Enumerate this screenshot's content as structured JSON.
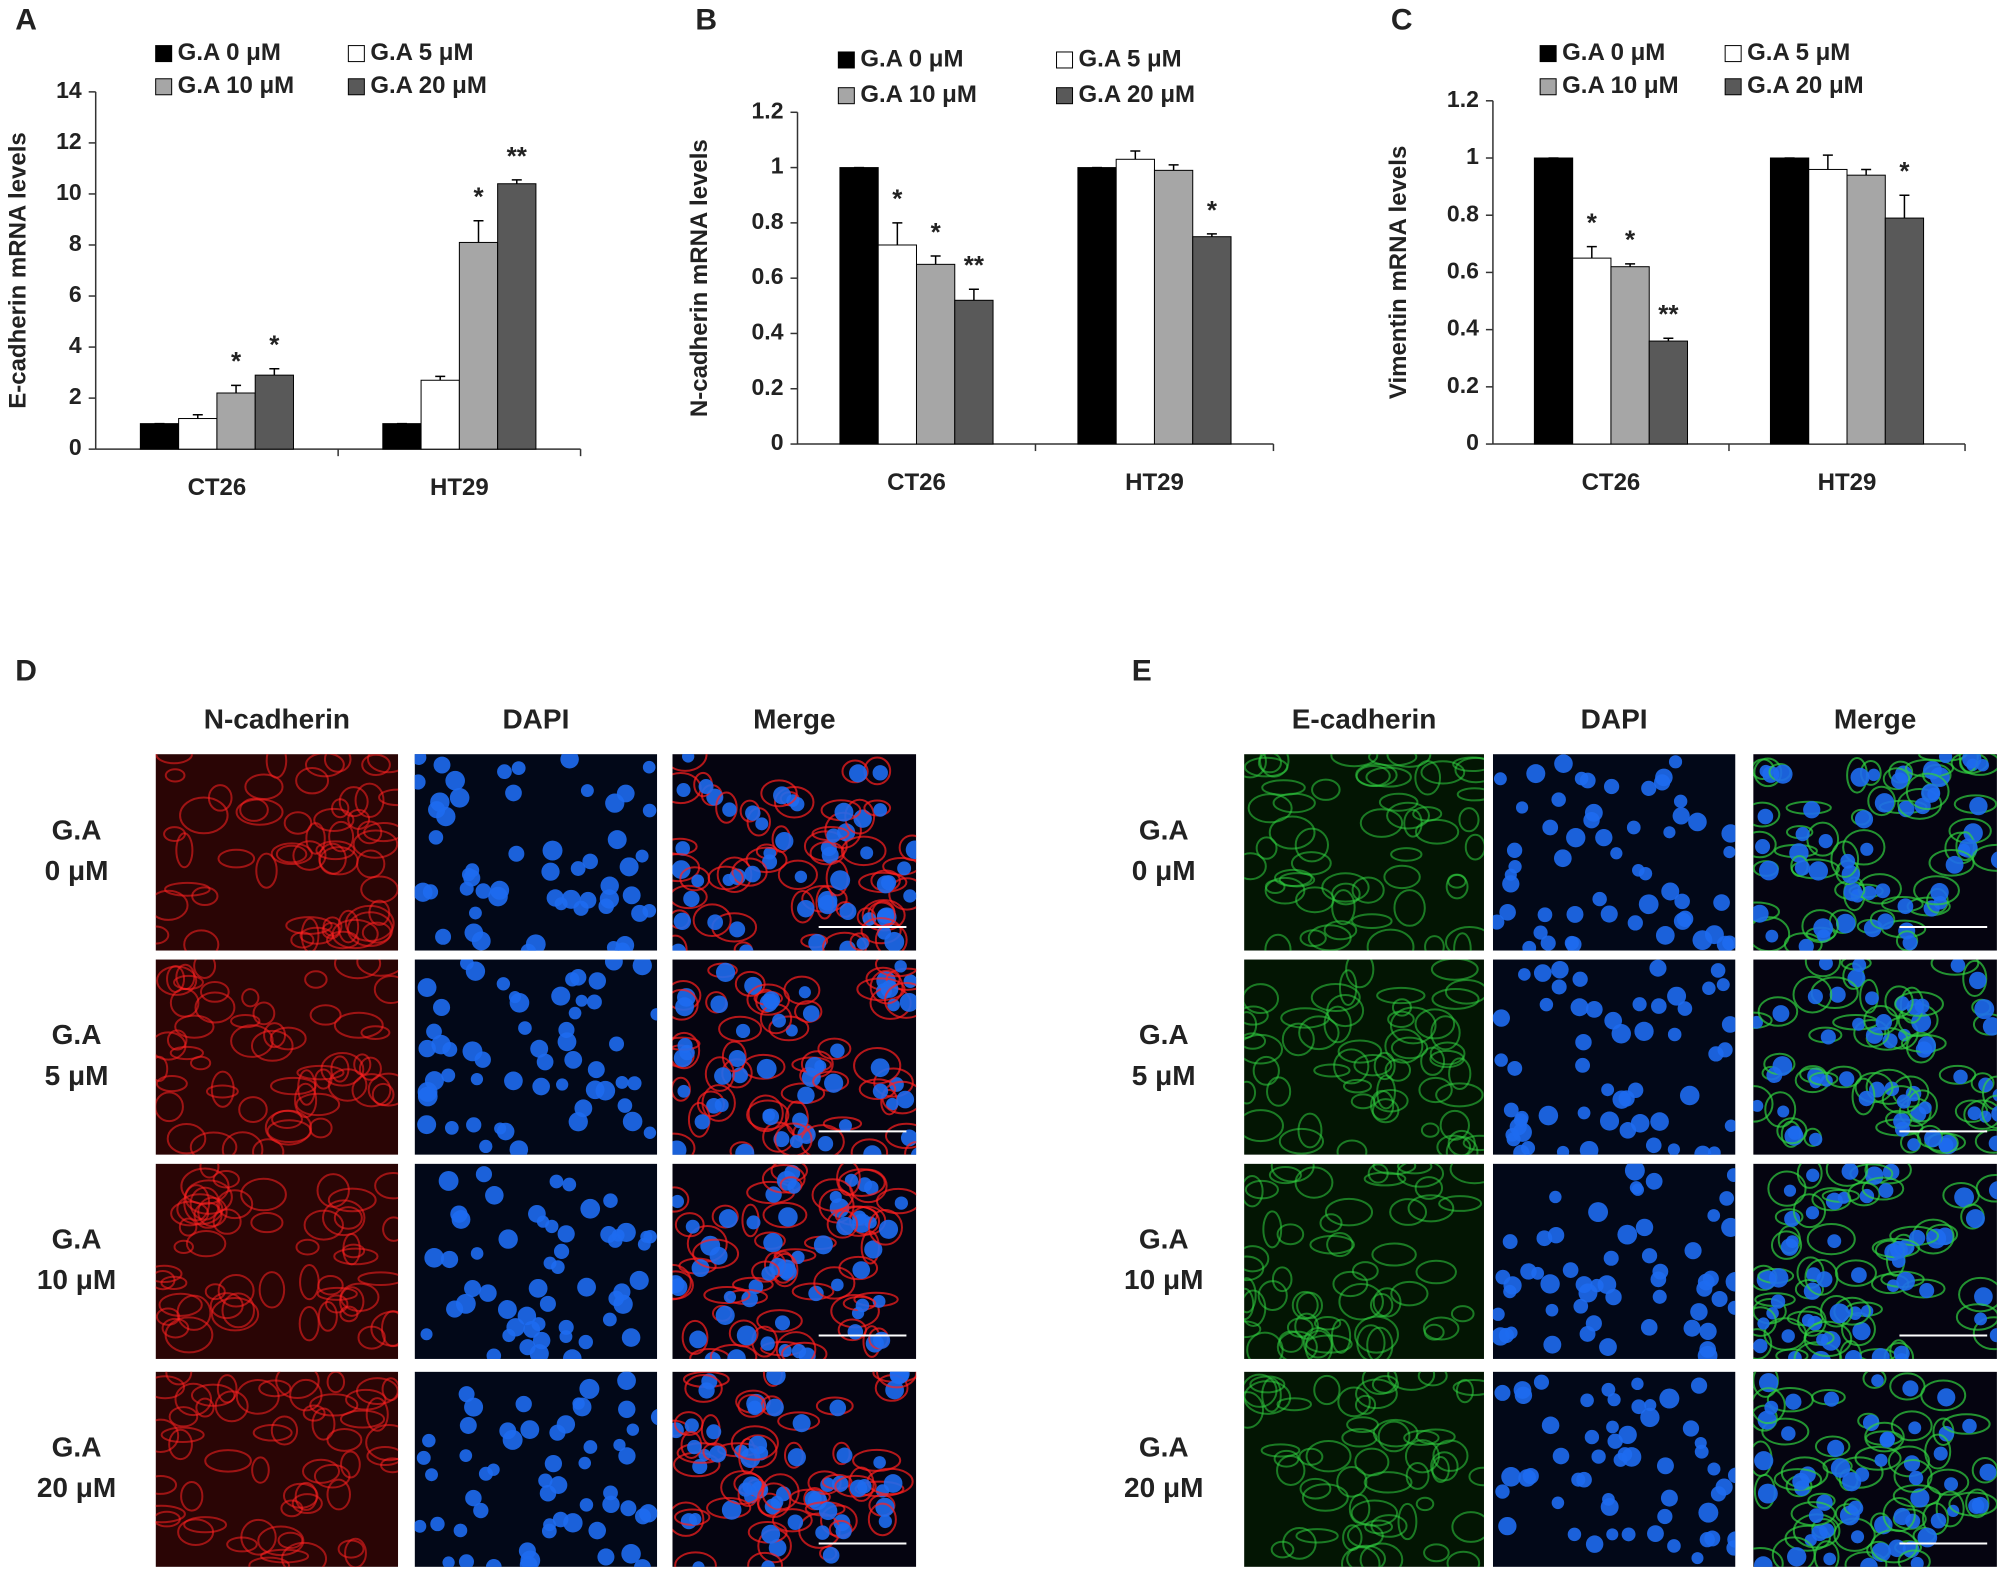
{
  "chart_data": [
    {
      "type": "bar",
      "panel": "A",
      "y_label": "E-cadherin mRNA levels",
      "categories": [
        "CT26",
        "HT29"
      ],
      "ylim": [
        0,
        14
      ],
      "yticks": [
        0,
        2,
        4,
        6,
        8,
        10,
        12,
        14
      ],
      "series": [
        {
          "name": "G.A 0 μM",
          "color": "#000000",
          "values": [
            1,
            1
          ],
          "errors": [
            0,
            0
          ],
          "significance": [
            null,
            null
          ]
        },
        {
          "name": "G.A 5 μM",
          "color": "#ffffff",
          "values": [
            1.2,
            2.7
          ],
          "errors": [
            0.15,
            0.15
          ],
          "significance": [
            null,
            null
          ]
        },
        {
          "name": "G.A 10 μM",
          "color": "#a6a6a6",
          "values": [
            2.2,
            8.1
          ],
          "errors": [
            0.3,
            0.85
          ],
          "significance": [
            "*",
            "*"
          ]
        },
        {
          "name": "G.A 20 μM",
          "color": "#595959",
          "values": [
            2.9,
            10.4
          ],
          "errors": [
            0.25,
            0.15
          ],
          "significance": [
            "*",
            "**"
          ]
        }
      ]
    },
    {
      "type": "bar",
      "panel": "B",
      "y_label": "N-cadherin mRNA levels",
      "categories": [
        "CT26",
        "HT29"
      ],
      "ylim": [
        0,
        1.2
      ],
      "yticks": [
        0,
        0.2,
        0.4,
        0.6,
        0.8,
        1,
        1.2
      ],
      "series": [
        {
          "name": "G.A 0 μM",
          "color": "#000000",
          "values": [
            1,
            1
          ],
          "errors": [
            0,
            0
          ],
          "significance": [
            null,
            null
          ]
        },
        {
          "name": "G.A 5 μM",
          "color": "#ffffff",
          "values": [
            0.72,
            1.03
          ],
          "errors": [
            0.08,
            0.03
          ],
          "significance": [
            "*",
            null
          ]
        },
        {
          "name": "G.A 10 μM",
          "color": "#a6a6a6",
          "values": [
            0.65,
            0.99
          ],
          "errors": [
            0.03,
            0.02
          ],
          "significance": [
            "*",
            null
          ]
        },
        {
          "name": "G.A 20 μM",
          "color": "#595959",
          "values": [
            0.52,
            0.75
          ],
          "errors": [
            0.04,
            0.01
          ],
          "significance": [
            "**",
            "*"
          ]
        }
      ]
    },
    {
      "type": "bar",
      "panel": "C",
      "y_label": "Vimentin mRNA levels",
      "categories": [
        "CT26",
        "HT29"
      ],
      "ylim": [
        0,
        1.2
      ],
      "yticks": [
        0,
        0.2,
        0.4,
        0.6,
        0.8,
        1,
        1.2
      ],
      "series": [
        {
          "name": "G.A 0 μM",
          "color": "#000000",
          "values": [
            1,
            1
          ],
          "errors": [
            0,
            0
          ],
          "significance": [
            null,
            null
          ]
        },
        {
          "name": "G.A 5 μM",
          "color": "#ffffff",
          "values": [
            0.65,
            0.96
          ],
          "errors": [
            0.04,
            0.05
          ],
          "significance": [
            "*",
            null
          ]
        },
        {
          "name": "G.A 10 μM",
          "color": "#a6a6a6",
          "values": [
            0.62,
            0.94
          ],
          "errors": [
            0.01,
            0.02
          ],
          "significance": [
            "*",
            null
          ]
        },
        {
          "name": "G.A 20 μM",
          "color": "#595959",
          "values": [
            0.36,
            0.79
          ],
          "errors": [
            0.01,
            0.08
          ],
          "significance": [
            "**",
            "*"
          ]
        }
      ]
    }
  ],
  "figure_panels": [
    {
      "panel": "D",
      "columns": [
        "N-cadherin",
        "DAPI",
        "Merge"
      ],
      "rows": [
        [
          "G.A",
          "0 μM"
        ],
        [
          "G.A",
          "5 μM"
        ],
        [
          "G.A",
          "10 μM"
        ],
        [
          "G.A",
          "20 μM"
        ]
      ]
    },
    {
      "panel": "E",
      "columns": [
        "E-cadherin",
        "DAPI",
        "Merge"
      ],
      "rows": [
        [
          "G.A",
          "0 μM"
        ],
        [
          "G.A",
          "5 μM"
        ],
        [
          "G.A",
          "10 μM"
        ],
        [
          "G.A",
          "20 μM"
        ]
      ]
    }
  ]
}
